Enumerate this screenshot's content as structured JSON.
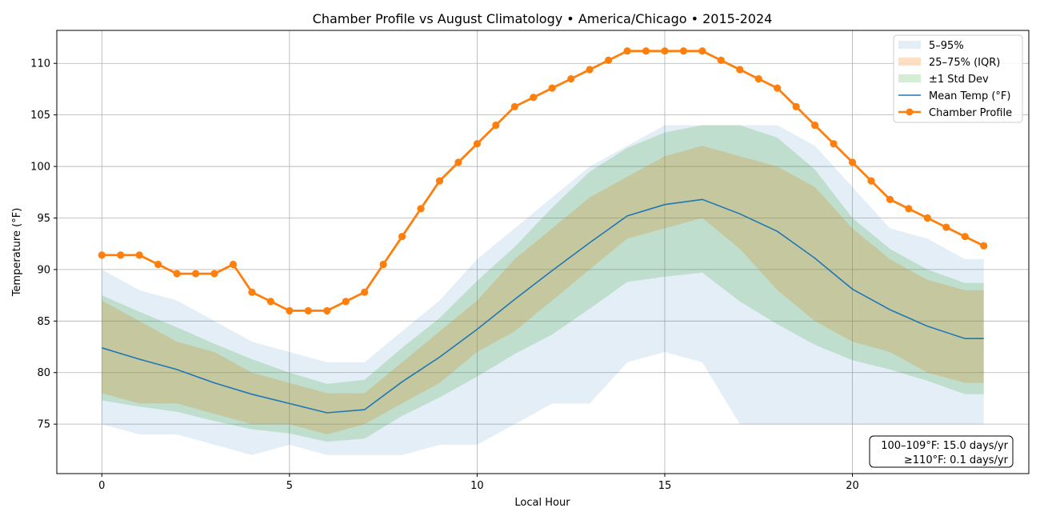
{
  "chart_data": {
    "type": "line",
    "title": "Chamber Profile vs August Climatology • America/Chicago • 2015-2024",
    "xlabel": "Local Hour",
    "ylabel": "Temperature (°F)",
    "xlim": [
      -1.2,
      24.7
    ],
    "ylim": [
      70.2,
      113.2
    ],
    "xticks": [
      0,
      5,
      10,
      15,
      20
    ],
    "yticks": [
      75,
      80,
      85,
      90,
      95,
      100,
      105,
      110
    ],
    "grid": true,
    "legend_position": "top-right",
    "colors": {
      "p5_95": "#1f77b4",
      "iqr": "#ff7f0e",
      "std": "#2ca02c",
      "mean": "#1f77b4",
      "chamber": "#ff7f0e"
    },
    "legend": [
      "5–95%",
      "25–75% (IQR)",
      "±1 Std Dev",
      "Mean Temp (°F)",
      "Chamber Profile"
    ],
    "hours": [
      0,
      1,
      2,
      3,
      4,
      5,
      6,
      7,
      8,
      9,
      10,
      11,
      12,
      13,
      14,
      15,
      16,
      17,
      18,
      19,
      20,
      21,
      22,
      23,
      23.5
    ],
    "bands": {
      "p5_95": {
        "low": [
          75,
          74,
          74,
          73,
          72,
          73,
          72,
          72,
          72,
          73,
          73,
          75,
          77,
          77,
          81,
          82,
          81,
          75,
          75,
          75,
          75,
          75,
          75,
          75,
          75
        ],
        "high": [
          90,
          88,
          87,
          85,
          83,
          82,
          81,
          81,
          84,
          87,
          91,
          94,
          97,
          100,
          102,
          104,
          104,
          104,
          104,
          102,
          98,
          94,
          93,
          91,
          91
        ]
      },
      "iqr": {
        "low": [
          78,
          77,
          77,
          76,
          75,
          75,
          74,
          75,
          77,
          79,
          82,
          84,
          87,
          90,
          93,
          94,
          95,
          92,
          88,
          85,
          83,
          82,
          80,
          79,
          79
        ],
        "high": [
          87,
          85,
          83,
          82,
          80,
          79,
          78,
          78,
          81,
          84,
          87,
          91,
          94,
          97,
          99,
          101,
          102,
          101,
          100,
          98,
          94,
          91,
          89,
          88,
          88
        ]
      },
      "std": {
        "low": [
          77.3,
          76.7,
          76.2,
          75.3,
          74.5,
          74.1,
          73.3,
          73.6,
          75.8,
          77.6,
          79.6,
          81.8,
          83.7,
          86.2,
          88.8,
          89.3,
          89.7,
          86.9,
          84.7,
          82.7,
          81.2,
          80.3,
          79.2,
          77.9,
          77.9
        ],
        "high": [
          87.5,
          85.9,
          84.4,
          82.8,
          81.3,
          80.0,
          78.9,
          79.3,
          82.4,
          85.3,
          88.9,
          92.2,
          96.0,
          99.5,
          101.8,
          103.3,
          104.0,
          104.0,
          102.8,
          99.7,
          95.0,
          92.0,
          90.0,
          88.7,
          88.7
        ]
      }
    },
    "series": [
      {
        "name": "Mean Temp (°F)",
        "x": [
          0,
          1,
          2,
          3,
          4,
          5,
          6,
          7,
          8,
          9,
          10,
          11,
          12,
          13,
          14,
          15,
          16,
          17,
          18,
          19,
          20,
          21,
          22,
          23,
          23.5
        ],
        "values": [
          82.4,
          81.3,
          80.3,
          79.0,
          77.9,
          77.0,
          76.1,
          76.4,
          79.1,
          81.5,
          84.2,
          87.1,
          89.9,
          92.6,
          95.2,
          96.3,
          96.8,
          95.4,
          93.7,
          91.1,
          88.1,
          86.1,
          84.5,
          83.3,
          83.3
        ]
      },
      {
        "name": "Chamber Profile",
        "x": [
          0,
          0.5,
          1,
          1.5,
          2,
          2.5,
          3,
          3.5,
          4,
          4.5,
          5,
          5.5,
          6,
          6.5,
          7,
          7.5,
          8,
          8.5,
          9,
          9.5,
          10,
          10.5,
          11,
          11.5,
          12,
          12.5,
          13,
          13.5,
          14,
          14.5,
          15,
          15.5,
          16,
          16.5,
          17,
          17.5,
          18,
          18.5,
          19,
          19.5,
          20,
          20.5,
          21,
          21.5,
          22,
          22.5,
          23,
          23.5
        ],
        "values": [
          91.4,
          91.4,
          91.4,
          90.5,
          89.6,
          89.6,
          89.6,
          90.5,
          87.8,
          86.9,
          86.0,
          86.0,
          86.0,
          86.9,
          87.8,
          90.5,
          93.2,
          95.9,
          98.6,
          100.4,
          102.2,
          104.0,
          105.8,
          106.7,
          107.6,
          108.5,
          109.4,
          110.3,
          111.2,
          111.2,
          111.2,
          111.2,
          111.2,
          110.3,
          109.4,
          108.5,
          107.6,
          105.8,
          104.0,
          102.2,
          100.4,
          98.6,
          96.8,
          95.9,
          95.0,
          94.1,
          93.2,
          92.3
        ]
      }
    ],
    "stats": [
      "100–109°F: 15.0 days/yr",
      "≥110°F: 0.1 days/yr"
    ]
  }
}
